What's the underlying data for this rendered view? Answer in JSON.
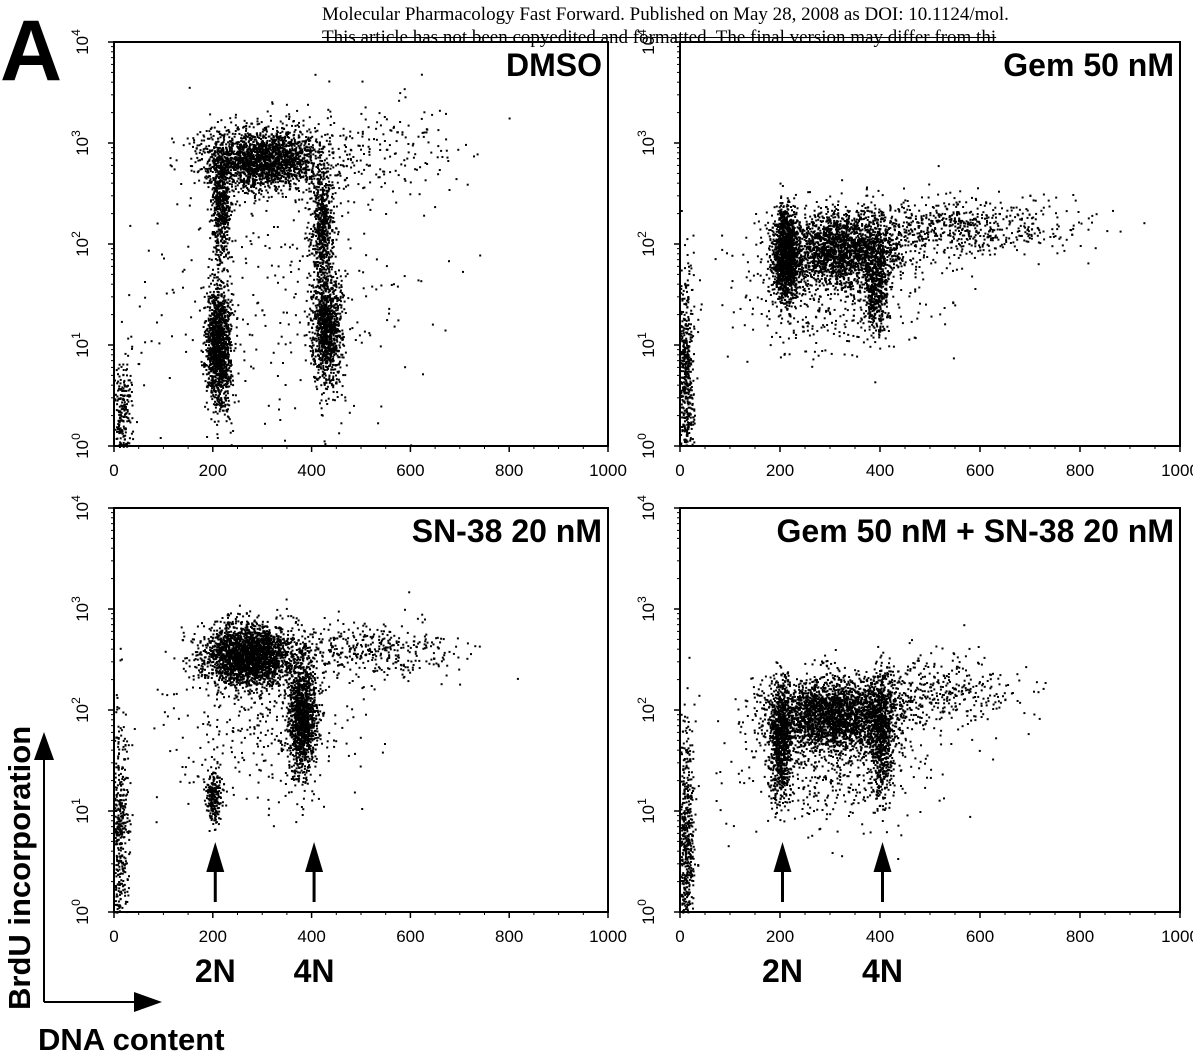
{
  "header": {
    "line1": "Molecular Pharmacology Fast Forward. Published on May 28, 2008 as DOI: 10.1124/mol.",
    "line2": "This article has not been copyedited and formatted. The final version may differ from thi"
  },
  "figure_letter": "A",
  "axis_titles": {
    "y": "BrdU incorporation",
    "x": "DNA content"
  },
  "chart_data": [
    {
      "type": "scatter",
      "title": "DMSO",
      "xlim": [
        0,
        1000
      ],
      "ylim": [
        1,
        10000
      ],
      "yscale": "log",
      "xticks": [
        "0",
        "200",
        "400",
        "600",
        "800",
        "1000"
      ],
      "yticks": [
        "10^0",
        "10^1",
        "10^2",
        "10^3",
        "10^4"
      ],
      "clusters": [
        {
          "cx": 210,
          "cy": 10,
          "sx": 12,
          "sy": 0.3,
          "n": 1400
        },
        {
          "cx": 430,
          "cy": 15,
          "sx": 15,
          "sy": 0.28,
          "n": 1100
        },
        {
          "cx": 300,
          "cy": 700,
          "sx": 60,
          "sy": 0.15,
          "n": 2200
        },
        {
          "cx": 215,
          "cy": 250,
          "sx": 10,
          "sy": 0.3,
          "n": 600
        },
        {
          "cx": 420,
          "cy": 150,
          "sx": 12,
          "sy": 0.3,
          "n": 600
        },
        {
          "cx": 15,
          "cy": 2,
          "sx": 10,
          "sy": 0.3,
          "n": 250
        },
        {
          "cx": 500,
          "cy": 900,
          "sx": 100,
          "sy": 0.25,
          "n": 200
        },
        {
          "cx": 320,
          "cy": 30,
          "sx": 150,
          "sy": 0.7,
          "n": 300
        }
      ]
    },
    {
      "type": "scatter",
      "title": "Gem 50 nM",
      "xlim": [
        0,
        1000
      ],
      "ylim": [
        1,
        10000
      ],
      "yscale": "log",
      "xticks": [
        "0",
        "200",
        "400",
        "600",
        "800",
        "1000"
      ],
      "yticks": [
        "10^0",
        "10^1",
        "10^2",
        "10^3",
        "10^4"
      ],
      "clusters": [
        {
          "cx": 210,
          "cy": 80,
          "sx": 12,
          "sy": 0.22,
          "n": 1400
        },
        {
          "cx": 320,
          "cy": 90,
          "sx": 60,
          "sy": 0.18,
          "n": 2200
        },
        {
          "cx": 390,
          "cy": 40,
          "sx": 12,
          "sy": 0.25,
          "n": 500
        },
        {
          "cx": 550,
          "cy": 150,
          "sx": 120,
          "sy": 0.15,
          "n": 700
        },
        {
          "cx": 10,
          "cy": 5,
          "sx": 8,
          "sy": 0.5,
          "n": 550
        },
        {
          "cx": 300,
          "cy": 30,
          "sx": 100,
          "sy": 0.3,
          "n": 400
        }
      ]
    },
    {
      "type": "scatter",
      "title": "SN-38 20 nM",
      "xlim": [
        0,
        1000
      ],
      "ylim": [
        1,
        10000
      ],
      "yscale": "log",
      "xticks": [
        "0",
        "200",
        "400",
        "600",
        "800",
        "1000"
      ],
      "yticks": [
        "10^0",
        "10^1",
        "10^2",
        "10^3",
        "10^4"
      ],
      "clusters": [
        {
          "cx": 270,
          "cy": 350,
          "sx": 45,
          "sy": 0.15,
          "n": 2600
        },
        {
          "cx": 380,
          "cy": 90,
          "sx": 15,
          "sy": 0.3,
          "n": 1300
        },
        {
          "cx": 200,
          "cy": 15,
          "sx": 8,
          "sy": 0.15,
          "n": 250
        },
        {
          "cx": 500,
          "cy": 400,
          "sx": 100,
          "sy": 0.15,
          "n": 450
        },
        {
          "cx": 10,
          "cy": 5,
          "sx": 10,
          "sy": 0.6,
          "n": 500
        },
        {
          "cx": 300,
          "cy": 60,
          "sx": 100,
          "sy": 0.35,
          "n": 300
        }
      ]
    },
    {
      "type": "scatter",
      "title": "Gem 50 nM + SN-38 20 nM",
      "xlim": [
        0,
        1000
      ],
      "ylim": [
        1,
        10000
      ],
      "yscale": "log",
      "xticks": [
        "0",
        "200",
        "400",
        "600",
        "800",
        "1000"
      ],
      "yticks": [
        "10^0",
        "10^1",
        "10^2",
        "10^3",
        "10^4"
      ],
      "clusters": [
        {
          "cx": 300,
          "cy": 90,
          "sx": 65,
          "sy": 0.18,
          "n": 2800
        },
        {
          "cx": 200,
          "cy": 50,
          "sx": 10,
          "sy": 0.3,
          "n": 800
        },
        {
          "cx": 400,
          "cy": 60,
          "sx": 12,
          "sy": 0.3,
          "n": 700
        },
        {
          "cx": 500,
          "cy": 150,
          "sx": 90,
          "sy": 0.18,
          "n": 450
        },
        {
          "cx": 10,
          "cy": 5,
          "sx": 8,
          "sy": 0.55,
          "n": 550
        },
        {
          "cx": 300,
          "cy": 25,
          "sx": 100,
          "sy": 0.3,
          "n": 400
        }
      ]
    }
  ],
  "arrow_labels": [
    {
      "x": 205,
      "text": "2N"
    },
    {
      "x": 405,
      "text": "4N"
    }
  ]
}
